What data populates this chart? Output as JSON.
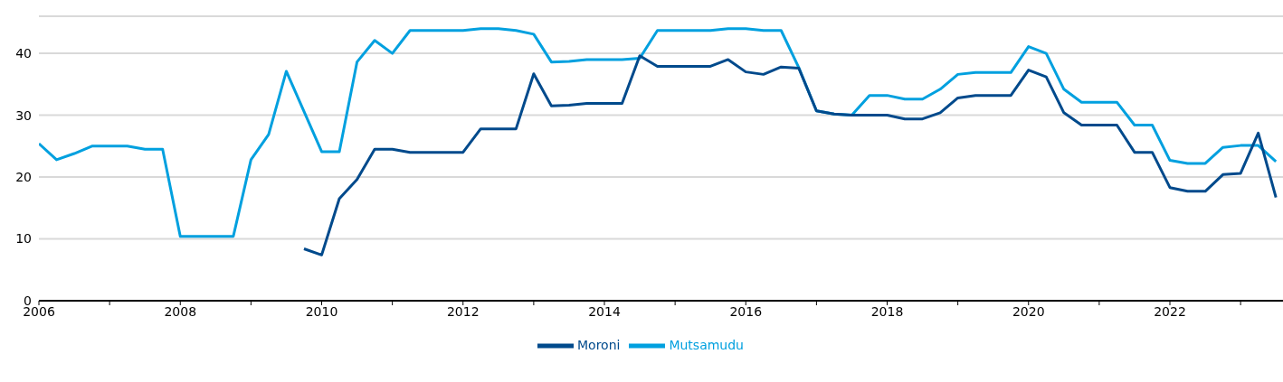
{
  "chart_data": {
    "type": "line",
    "x": [
      2006,
      2006.25,
      2006.5,
      2006.75,
      2007,
      2007.25,
      2007.5,
      2007.75,
      2008,
      2008.25,
      2008.5,
      2008.75,
      2009,
      2009.25,
      2009.5,
      2009.75,
      2010,
      2010.25,
      2010.5,
      2010.75,
      2011,
      2011.25,
      2011.5,
      2011.75,
      2012,
      2012.25,
      2012.5,
      2012.75,
      2013,
      2013.25,
      2013.5,
      2013.75,
      2014,
      2014.25,
      2014.5,
      2014.75,
      2015,
      2015.25,
      2015.5,
      2015.75,
      2016,
      2016.25,
      2016.5,
      2016.75,
      2017,
      2017.25,
      2017.5,
      2017.75,
      2018,
      2018.25,
      2018.5,
      2018.75,
      2019,
      2019.25,
      2019.5,
      2019.75,
      2020,
      2020.25,
      2020.5,
      2020.75,
      2021,
      2021.25,
      2021.5,
      2021.75,
      2022,
      2022.25,
      2022.5,
      2022.75,
      2023,
      2023.25,
      2023.5
    ],
    "series": [
      {
        "name": "Mutsamudu",
        "color": "#00a0df",
        "values": [
          25.4,
          22.8,
          23.8,
          25.0,
          25.0,
          25.0,
          24.5,
          24.5,
          10.4,
          10.4,
          10.4,
          10.4,
          22.8,
          26.9,
          37.1,
          30.6,
          24.1,
          24.1,
          38.6,
          42.1,
          40.0,
          43.7,
          43.7,
          43.7,
          43.7,
          44.0,
          44.0,
          43.7,
          43.1,
          38.6,
          38.7,
          39.0,
          39.0,
          39.0,
          39.2,
          43.7,
          43.7,
          43.7,
          43.7,
          44.0,
          44.0,
          43.7,
          43.7,
          37.7,
          30.7,
          30.2,
          30.0,
          33.2,
          33.2,
          32.6,
          32.6,
          34.2,
          36.6,
          36.9,
          36.9,
          36.9,
          41.1,
          40.0,
          34.2,
          32.1,
          32.1,
          32.1,
          28.4,
          28.4,
          22.7,
          22.2,
          22.2,
          24.8,
          25.1,
          25.1,
          22.5
        ]
      },
      {
        "name": "Moroni",
        "color": "#004a8c",
        "values": [
          null,
          null,
          null,
          null,
          null,
          null,
          null,
          null,
          null,
          null,
          null,
          null,
          null,
          null,
          null,
          8.4,
          7.4,
          16.5,
          19.6,
          24.5,
          24.5,
          24.0,
          24.0,
          24.0,
          24.0,
          27.8,
          27.8,
          27.8,
          36.7,
          31.5,
          31.6,
          31.9,
          31.9,
          31.9,
          39.6,
          37.9,
          37.9,
          37.9,
          37.9,
          39.0,
          37.0,
          36.6,
          37.8,
          37.6,
          30.7,
          30.2,
          30.0,
          30.0,
          30.0,
          29.4,
          29.4,
          30.4,
          32.8,
          33.2,
          33.2,
          33.2,
          37.3,
          36.2,
          30.4,
          28.4,
          28.4,
          28.4,
          24.0,
          24.0,
          18.3,
          17.7,
          17.7,
          20.4,
          20.6,
          27.1,
          16.7
        ]
      }
    ],
    "xlim": [
      2006,
      2023.6
    ],
    "xticks": [
      2006,
      {
        "value": 2007,
        "label": null
      },
      2008,
      {
        "value": 2009,
        "label": null
      },
      2010,
      {
        "value": 2011,
        "label": null
      },
      2012,
      {
        "value": 2013,
        "label": null
      },
      2014,
      {
        "value": 2015,
        "label": null
      },
      2016,
      {
        "value": 2017,
        "label": null
      },
      2018,
      {
        "value": 2019,
        "label": null
      },
      2020,
      {
        "value": 2021,
        "label": null
      },
      2022,
      {
        "value": 2023,
        "label": null
      }
    ],
    "ylim": [
      0,
      46
    ],
    "yticks": [
      0,
      10,
      20,
      30,
      40
    ],
    "grid": "y",
    "legend": "bottom",
    "marker": "none",
    "line_style": "solid"
  }
}
